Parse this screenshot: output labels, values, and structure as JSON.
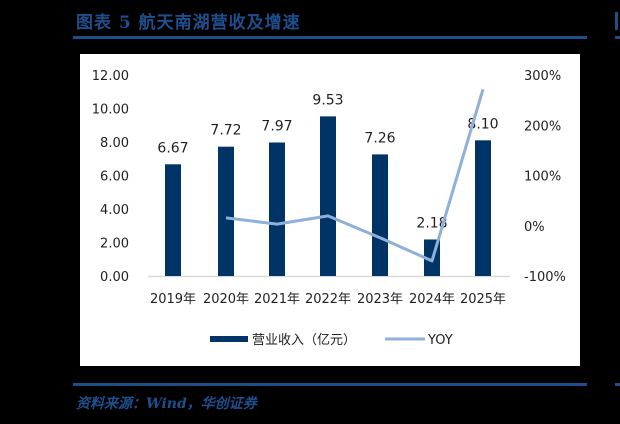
{
  "header": {
    "title": "图表 5   航天南湖营收及增速"
  },
  "source": {
    "text": "资料来源：Wind，华创证券"
  },
  "colors": {
    "bar": "#003366",
    "line": "#8fb0d9",
    "rule": "#1f4e8c",
    "axis": "#d9d9d9"
  },
  "chart_data": {
    "type": "bar",
    "title": "航天南湖营收及增速",
    "categories": [
      "2019年",
      "2020年",
      "2021年",
      "2022年",
      "2023年",
      "2024年",
      "2025年"
    ],
    "series": [
      {
        "name": "营业收入（亿元）",
        "type": "bar",
        "axis": "left",
        "values": [
          6.67,
          7.72,
          7.97,
          9.53,
          7.26,
          2.18,
          8.1
        ],
        "labels": [
          "6.67",
          "7.72",
          "7.97",
          "9.53",
          "7.26",
          "2.18",
          "8.10"
        ]
      },
      {
        "name": "YOY",
        "type": "line",
        "axis": "right",
        "values": [
          null,
          15.7,
          3.2,
          19.6,
          -23.8,
          -70.0,
          271.6
        ]
      }
    ],
    "left_axis": {
      "ticks": [
        "12.00",
        "10.00",
        "8.00",
        "6.00",
        "4.00",
        "2.00",
        "0.00"
      ],
      "ylim": [
        0,
        12
      ]
    },
    "right_axis": {
      "ticks": [
        "300%",
        "200%",
        "100%",
        "0%",
        "-100%"
      ],
      "ylim": [
        -100,
        300
      ]
    },
    "legend": {
      "position": "bottom",
      "entries": [
        "营业收入（亿元）",
        "YOY"
      ]
    },
    "grid": false,
    "xlabel": "",
    "ylabel": ""
  }
}
